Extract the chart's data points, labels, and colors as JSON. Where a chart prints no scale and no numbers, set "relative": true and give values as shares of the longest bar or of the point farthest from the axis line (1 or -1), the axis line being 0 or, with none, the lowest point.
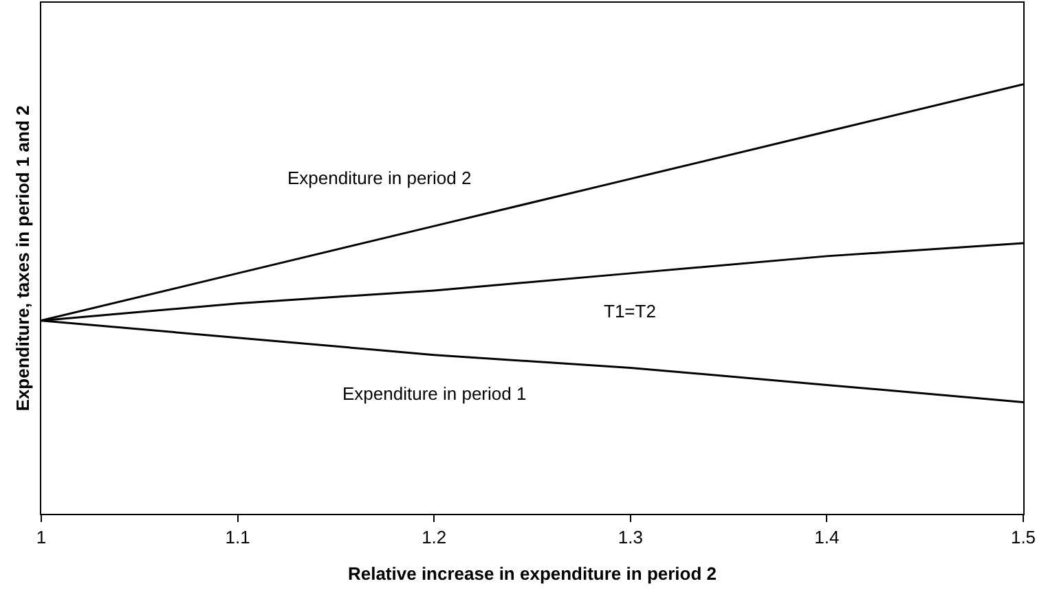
{
  "chart_data": {
    "type": "line",
    "relative": true,
    "xlabel": "Relative increase in expenditure in period 2",
    "ylabel": "Expenditure, taxes in period 1 and 2",
    "x": [
      1,
      1.1,
      1.2,
      1.3,
      1.4,
      1.5
    ],
    "xlim": [
      1,
      1.5
    ],
    "xticks": [
      1,
      1.1,
      1.2,
      1.3,
      1.4,
      1.5
    ],
    "series": [
      {
        "name": "Expenditure in period 2",
        "color": "#000000",
        "values": [
          0.45,
          0.56,
          0.67,
          0.78,
          0.89,
          1
        ]
      },
      {
        "name": "T1=T2",
        "color": "#000000",
        "values": [
          0.45,
          0.49,
          0.52,
          0.56,
          0.6,
          0.63
        ]
      },
      {
        "name": "Expenditure in period 1",
        "color": "#000000",
        "values": [
          0.45,
          0.41,
          0.37,
          0.34,
          0.3,
          0.26
        ]
      }
    ],
    "marker": "none",
    "line_style": "solid"
  }
}
